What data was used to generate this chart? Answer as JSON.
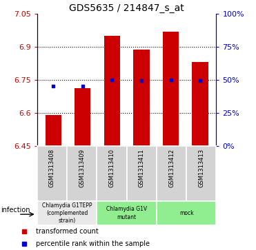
{
  "title": "GDS5635 / 214847_s_at",
  "samples": [
    "GSM1313408",
    "GSM1313409",
    "GSM1313410",
    "GSM1313411",
    "GSM1313412",
    "GSM1313413"
  ],
  "transformed_counts": [
    6.592,
    6.713,
    6.95,
    6.888,
    6.968,
    6.832
  ],
  "percentile_ranks_val": [
    6.722,
    6.722,
    6.752,
    6.748,
    6.752,
    6.748
  ],
  "ymin": 6.45,
  "ymax": 7.05,
  "yticks_left": [
    6.45,
    6.6,
    6.75,
    6.9,
    7.05
  ],
  "yticks_right_pct": [
    0,
    25,
    50,
    75,
    100
  ],
  "bar_color": "#cc0000",
  "dot_color": "#0000cc",
  "group_info": [
    [
      0,
      1,
      "#e8e8e8",
      "Chlamydia G1TEPP\n(complemented\nstrain)"
    ],
    [
      2,
      3,
      "#90ee90",
      "Chlamydia G1V\nmutant"
    ],
    [
      4,
      5,
      "#90ee90",
      "mock"
    ]
  ],
  "infection_label": "infection",
  "legend_bar_label": "transformed count",
  "legend_dot_label": "percentile rank within the sample",
  "bar_label_color": "#cc0000",
  "right_axis_color": "#0000cc",
  "sample_box_color": "#d3d3d3"
}
